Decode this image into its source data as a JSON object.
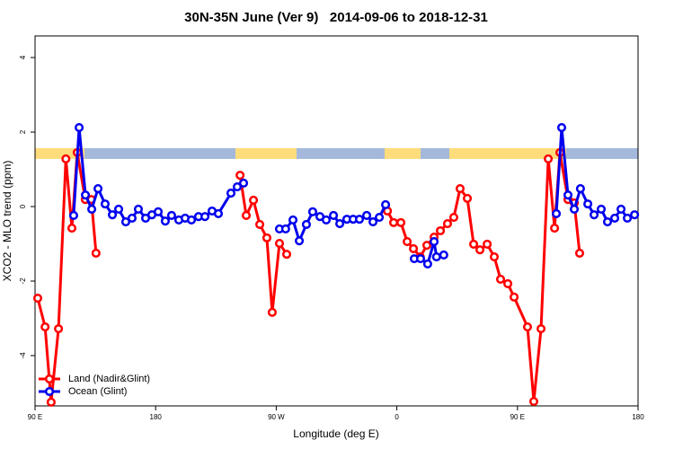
{
  "chart_data": {
    "type": "line",
    "title": "30N-35N June (Ver 9)   2014-09-06 to 2018-12-31",
    "x_label": "Longitude (deg E)",
    "y_label": "XCO2 - MLO trend (ppm)",
    "xlim": [
      90,
      540
    ],
    "ylim": [
      -5.35,
      4.58
    ],
    "xticks": [
      {
        "value": 90,
        "label": "90 E"
      },
      {
        "value": 180,
        "label": "180"
      },
      {
        "value": 270,
        "label": "90 W"
      },
      {
        "value": 360,
        "label": "0"
      },
      {
        "value": 450,
        "label": "90 E"
      },
      {
        "value": 540,
        "label": "180"
      }
    ],
    "yticks": [
      -4,
      -2,
      0,
      2,
      4
    ],
    "grid": false,
    "legend": "bottom-left",
    "series": [
      {
        "name": "Land (Nadir&Glint)",
        "color": "#ff0000",
        "x": [
          92,
          97.5,
          102,
          107.5,
          113,
          117.5,
          121.5,
          127.5,
          132,
          135.5,
          null,
          243,
          247.6,
          253,
          257.7,
          263,
          267,
          272.4,
          277.8,
          null,
          353,
          357.6,
          363,
          367.7,
          372.4,
          377.5,
          382.4,
          387.8,
          392.5,
          397.8,
          402.5,
          407.2,
          412.6,
          417.3,
          422,
          427.4,
          432.7,
          437.4,
          442.8,
          447.5,
          457.5,
          462.2,
          467.6,
          473,
          477.7,
          481.7,
          487.7,
          492.4,
          496.4
        ],
        "values": [
          -2.46,
          -3.23,
          -5.25,
          -3.28,
          1.28,
          -0.58,
          1.45,
          0.19,
          0.19,
          -1.25,
          null,
          0.84,
          -0.24,
          0.17,
          -0.48,
          -0.84,
          -2.84,
          -0.99,
          -1.28,
          null,
          -0.12,
          -0.43,
          -0.43,
          -0.94,
          -1.13,
          -1.35,
          -1.04,
          -0.82,
          -0.65,
          -0.46,
          -0.29,
          0.48,
          0.22,
          -1.01,
          -1.16,
          -1.01,
          -1.35,
          -1.95,
          -2.07,
          -2.43,
          -3.23,
          -5.23,
          -3.28,
          1.28,
          -0.58,
          1.45,
          0.19,
          0.1,
          -1.25
        ]
      },
      {
        "name": "Ocean (Glint)",
        "color": "#0000ee",
        "x": [
          118.8,
          122.9,
          127.6,
          132.3,
          137,
          142.3,
          147.7,
          152.4,
          157.7,
          162.4,
          167.1,
          172.5,
          177.2,
          181.9,
          187.2,
          191.9,
          197.3,
          202,
          206.7,
          212,
          216.8,
          222.1,
          226.8,
          236.2,
          240.9,
          245.6,
          null,
          272.4,
          277,
          282.5,
          287.2,
          292.5,
          297.2,
          302.6,
          307.3,
          312.7,
          317.4,
          322.7,
          327.4,
          332.1,
          337.5,
          342.2,
          346.9,
          351.6,
          null,
          373,
          377.7,
          383,
          387.8,
          389.6,
          395,
          null,
          479,
          483,
          487.7,
          492.4,
          497,
          502.5,
          507.2,
          512.5,
          517.2,
          522.6,
          527.3,
          532,
          537.4
        ],
        "values": [
          -0.24,
          2.12,
          0.31,
          -0.07,
          0.48,
          0.07,
          -0.22,
          -0.07,
          -0.41,
          -0.31,
          -0.07,
          -0.31,
          -0.22,
          -0.14,
          -0.39,
          -0.24,
          -0.36,
          -0.31,
          -0.36,
          -0.27,
          -0.27,
          -0.12,
          -0.19,
          0.36,
          0.53,
          0.63,
          null,
          -0.6,
          -0.6,
          -0.36,
          -0.92,
          -0.48,
          -0.14,
          -0.27,
          -0.36,
          -0.24,
          -0.46,
          -0.34,
          -0.34,
          -0.34,
          -0.24,
          -0.41,
          -0.29,
          0.05,
          null,
          -1.4,
          -1.4,
          -1.54,
          -0.94,
          -1.35,
          -1.3,
          null,
          -0.19,
          2.12,
          0.31,
          -0.07,
          0.48,
          0.07,
          -0.22,
          -0.07,
          -0.41,
          -0.31,
          -0.07,
          -0.31,
          -0.22
        ]
      }
    ]
  }
}
